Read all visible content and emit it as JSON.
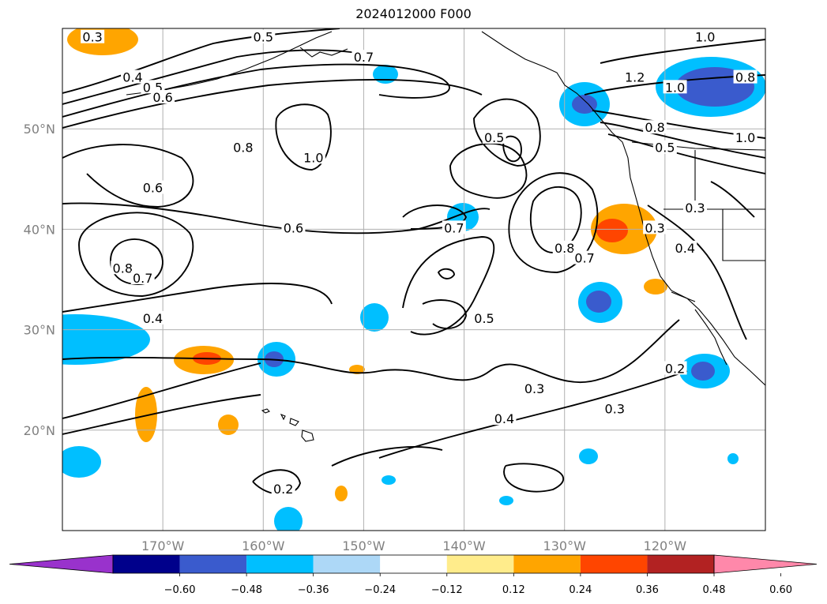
{
  "title": "2024012000 F000",
  "map": {
    "lon_range": [
      -180,
      -110
    ],
    "lat_range": [
      10,
      60
    ],
    "lon_ticks": [
      {
        "value": -170,
        "label": "170°W"
      },
      {
        "value": -160,
        "label": "160°W"
      },
      {
        "value": -150,
        "label": "150°W"
      },
      {
        "value": -140,
        "label": "140°W"
      },
      {
        "value": -130,
        "label": "130°W"
      },
      {
        "value": -120,
        "label": "120°W"
      }
    ],
    "lat_ticks": [
      {
        "value": 50,
        "label": "50°N"
      },
      {
        "value": 40,
        "label": "40°N"
      },
      {
        "value": 30,
        "label": "30°N"
      },
      {
        "value": 20,
        "label": "20°N"
      }
    ],
    "grid": true,
    "contour_labels": [
      {
        "text": "0.3",
        "lon": -177,
        "lat": 59
      },
      {
        "text": "0.4",
        "lon": -173,
        "lat": 55
      },
      {
        "text": "0.5",
        "lon": -171,
        "lat": 54
      },
      {
        "text": "0.6",
        "lon": -170,
        "lat": 53
      },
      {
        "text": "0.5",
        "lon": -160,
        "lat": 59
      },
      {
        "text": "0.7",
        "lon": -150,
        "lat": 57
      },
      {
        "text": "0.8",
        "lon": -162,
        "lat": 48
      },
      {
        "text": "1.0",
        "lon": -155,
        "lat": 47
      },
      {
        "text": "0.6",
        "lon": -171,
        "lat": 44
      },
      {
        "text": "0.6",
        "lon": -157,
        "lat": 40
      },
      {
        "text": "0.8",
        "lon": -174,
        "lat": 36
      },
      {
        "text": "0.7",
        "lon": -172,
        "lat": 35
      },
      {
        "text": "0.4",
        "lon": -171,
        "lat": 31
      },
      {
        "text": "0.5",
        "lon": -137,
        "lat": 49
      },
      {
        "text": "0.7",
        "lon": -141,
        "lat": 40
      },
      {
        "text": "0.8",
        "lon": -130,
        "lat": 38
      },
      {
        "text": "0.7",
        "lon": -128,
        "lat": 37
      },
      {
        "text": "0.5",
        "lon": -138,
        "lat": 31
      },
      {
        "text": "0.3",
        "lon": -133,
        "lat": 24
      },
      {
        "text": "0.3",
        "lon": -125,
        "lat": 22
      },
      {
        "text": "0.4",
        "lon": -136,
        "lat": 21
      },
      {
        "text": "0.2",
        "lon": -158,
        "lat": 14
      },
      {
        "text": "1.0",
        "lon": -116,
        "lat": 59
      },
      {
        "text": "0.8",
        "lon": -112,
        "lat": 55
      },
      {
        "text": "1.0",
        "lon": -119,
        "lat": 54
      },
      {
        "text": "1.2",
        "lon": -123,
        "lat": 55
      },
      {
        "text": "0.8",
        "lon": -121,
        "lat": 50
      },
      {
        "text": "1.0",
        "lon": -112,
        "lat": 49
      },
      {
        "text": "0.5",
        "lon": -120,
        "lat": 48
      },
      {
        "text": "0.3",
        "lon": -117,
        "lat": 42
      },
      {
        "text": "0.3",
        "lon": -121,
        "lat": 40
      },
      {
        "text": "0.4",
        "lon": -118,
        "lat": 38
      },
      {
        "text": "0.2",
        "lon": -119,
        "lat": 26
      }
    ]
  },
  "colorbar": {
    "ticks": [
      "−0.60",
      "−0.48",
      "−0.36",
      "−0.24",
      "−0.12",
      "0.12",
      "0.24",
      "0.36",
      "0.48",
      "0.60"
    ],
    "colors": [
      "#9932cc",
      "#00008b",
      "#3a5bcd",
      "#00bfff",
      "#add8f7",
      "#ffffff",
      "#ffec8b",
      "#ffa500",
      "#ff4500",
      "#b22222",
      "#ff88aa"
    ]
  }
}
